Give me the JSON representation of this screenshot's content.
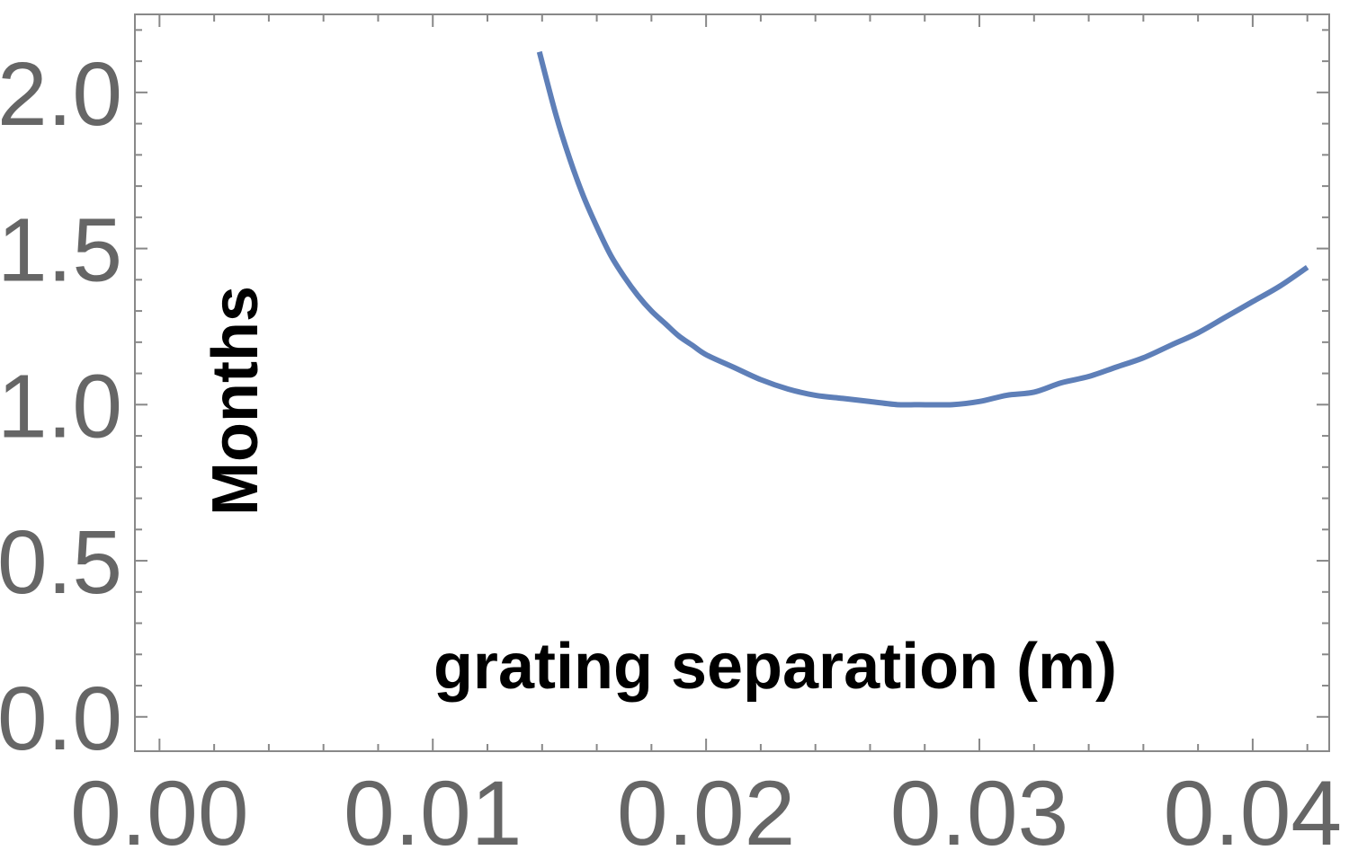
{
  "chart_data": {
    "type": "line",
    "title": "",
    "xlabel": "grating separation (m)",
    "ylabel": "Months",
    "xlim": [
      -0.0009,
      0.0428
    ],
    "ylim": [
      -0.11,
      2.25
    ],
    "x_ticks": [
      "0.00",
      "0.01",
      "0.02",
      "0.03",
      "0.04"
    ],
    "x_tick_values": [
      0.0,
      0.01,
      0.02,
      0.03,
      0.04
    ],
    "y_ticks": [
      "0.0",
      "0.5",
      "1.0",
      "1.5",
      "2.0"
    ],
    "y_tick_values": [
      0.0,
      0.5,
      1.0,
      1.5,
      2.0
    ],
    "grid": false,
    "series": [
      {
        "color": "#5e7fb8",
        "x": [
          0.0139,
          0.0145,
          0.015,
          0.0155,
          0.016,
          0.0165,
          0.017,
          0.0175,
          0.018,
          0.0185,
          0.019,
          0.0195,
          0.02,
          0.021,
          0.022,
          0.023,
          0.024,
          0.025,
          0.026,
          0.027,
          0.0278,
          0.029,
          0.03,
          0.031,
          0.032,
          0.033,
          0.034,
          0.035,
          0.036,
          0.037,
          0.038,
          0.039,
          0.04,
          0.041,
          0.042
        ],
        "y": [
          2.13,
          1.93,
          1.79,
          1.67,
          1.57,
          1.48,
          1.41,
          1.35,
          1.3,
          1.26,
          1.22,
          1.19,
          1.16,
          1.12,
          1.08,
          1.05,
          1.03,
          1.02,
          1.01,
          1.0,
          1.0,
          1.0,
          1.01,
          1.03,
          1.04,
          1.07,
          1.09,
          1.12,
          1.15,
          1.19,
          1.23,
          1.28,
          1.33,
          1.38,
          1.44
        ]
      }
    ]
  }
}
